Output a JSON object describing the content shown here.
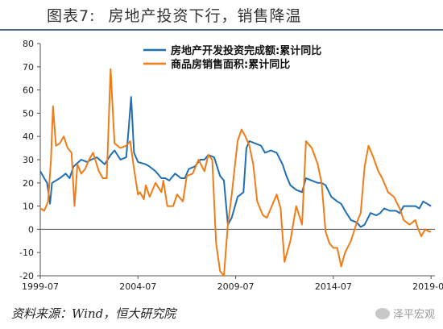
{
  "figure": {
    "label": "图表7:",
    "title": "房地产投资下行，销售降温",
    "source": "资料来源：Wind，恒大研究院",
    "watermark": "泽平宏观"
  },
  "chart_data": {
    "type": "line",
    "title": "",
    "xlabel": "",
    "ylabel": "",
    "ylim": [
      -20,
      80
    ],
    "yticks": [
      -20,
      -10,
      0,
      10,
      20,
      30,
      40,
      50,
      60,
      70,
      80
    ],
    "xlim": [
      1999.5,
      2019.7
    ],
    "xtick_labels": [
      "1999-07",
      "2004-07",
      "2009-07",
      "2014-07",
      "2019-07"
    ],
    "xtick_values": [
      1999.5,
      2004.5,
      2009.5,
      2014.5,
      2019.5
    ],
    "legend_position": "top-right",
    "grid": false,
    "series": [
      {
        "name": "房地产开发投资完成额:累计同比",
        "color": "#1f6fb2",
        "points": [
          [
            1999.5,
            25
          ],
          [
            1999.7,
            22
          ],
          [
            1999.85,
            20
          ],
          [
            2000.0,
            11
          ],
          [
            2000.1,
            20
          ],
          [
            2000.5,
            22
          ],
          [
            2000.8,
            24
          ],
          [
            2001.0,
            22
          ],
          [
            2001.2,
            27
          ],
          [
            2001.6,
            30
          ],
          [
            2001.9,
            29
          ],
          [
            2002.1,
            30
          ],
          [
            2002.4,
            31
          ],
          [
            2002.8,
            28
          ],
          [
            2003.1,
            32
          ],
          [
            2003.3,
            34
          ],
          [
            2003.6,
            30
          ],
          [
            2003.9,
            31
          ],
          [
            2004.0,
            41
          ],
          [
            2004.15,
            57
          ],
          [
            2004.3,
            33
          ],
          [
            2004.5,
            29
          ],
          [
            2004.9,
            28
          ],
          [
            2005.1,
            27
          ],
          [
            2005.4,
            25
          ],
          [
            2005.7,
            22
          ],
          [
            2005.9,
            22
          ],
          [
            2006.1,
            21
          ],
          [
            2006.4,
            24
          ],
          [
            2006.7,
            22
          ],
          [
            2006.9,
            22
          ],
          [
            2007.1,
            26
          ],
          [
            2007.4,
            27
          ],
          [
            2007.7,
            30
          ],
          [
            2007.9,
            30
          ],
          [
            2008.1,
            32
          ],
          [
            2008.4,
            31
          ],
          [
            2008.7,
            23
          ],
          [
            2008.9,
            21
          ],
          [
            2009.1,
            2
          ],
          [
            2009.3,
            5
          ],
          [
            2009.6,
            14
          ],
          [
            2009.9,
            16
          ],
          [
            2010.05,
            35
          ],
          [
            2010.2,
            38
          ],
          [
            2010.5,
            37
          ],
          [
            2010.8,
            36
          ],
          [
            2011.0,
            33
          ],
          [
            2011.3,
            34
          ],
          [
            2011.6,
            33
          ],
          [
            2011.9,
            28
          ],
          [
            2012.1,
            23
          ],
          [
            2012.3,
            19
          ],
          [
            2012.6,
            17
          ],
          [
            2012.9,
            16
          ],
          [
            2013.1,
            22
          ],
          [
            2013.4,
            21
          ],
          [
            2013.7,
            20
          ],
          [
            2013.9,
            20
          ],
          [
            2014.1,
            19
          ],
          [
            2014.4,
            14
          ],
          [
            2014.7,
            12
          ],
          [
            2014.9,
            11
          ],
          [
            2015.1,
            8
          ],
          [
            2015.4,
            4
          ],
          [
            2015.7,
            3
          ],
          [
            2015.9,
            1
          ],
          [
            2016.1,
            2
          ],
          [
            2016.4,
            7
          ],
          [
            2016.7,
            6
          ],
          [
            2016.9,
            7
          ],
          [
            2017.1,
            9
          ],
          [
            2017.4,
            8
          ],
          [
            2017.7,
            8
          ],
          [
            2017.9,
            7
          ],
          [
            2018.1,
            10
          ],
          [
            2018.4,
            10
          ],
          [
            2018.7,
            10
          ],
          [
            2018.9,
            9
          ],
          [
            2019.1,
            12
          ],
          [
            2019.3,
            11
          ],
          [
            2019.5,
            10
          ]
        ]
      },
      {
        "name": "商品房销售面积:累计同比",
        "color": "#f07c18",
        "points": [
          [
            1999.5,
            9
          ],
          [
            1999.7,
            8
          ],
          [
            1999.9,
            12
          ],
          [
            2000.05,
            30
          ],
          [
            2000.15,
            53
          ],
          [
            2000.3,
            36
          ],
          [
            2000.5,
            37
          ],
          [
            2000.7,
            40
          ],
          [
            2000.9,
            35
          ],
          [
            2001.1,
            33
          ],
          [
            2001.25,
            10
          ],
          [
            2001.4,
            28
          ],
          [
            2001.6,
            24
          ],
          [
            2001.8,
            26
          ],
          [
            2002.0,
            30
          ],
          [
            2002.2,
            33
          ],
          [
            2002.5,
            25
          ],
          [
            2002.7,
            22
          ],
          [
            2002.9,
            22
          ],
          [
            2003.1,
            69
          ],
          [
            2003.3,
            37
          ],
          [
            2003.6,
            35
          ],
          [
            2003.9,
            36
          ],
          [
            2004.1,
            38
          ],
          [
            2004.3,
            26
          ],
          [
            2004.5,
            15
          ],
          [
            2004.6,
            16
          ],
          [
            2004.8,
            13
          ],
          [
            2004.9,
            19
          ],
          [
            2005.1,
            14
          ],
          [
            2005.4,
            20
          ],
          [
            2005.7,
            16
          ],
          [
            2005.8,
            21
          ],
          [
            2006.0,
            10
          ],
          [
            2006.3,
            10
          ],
          [
            2006.5,
            15
          ],
          [
            2006.8,
            12
          ],
          [
            2007.0,
            23
          ],
          [
            2007.3,
            24
          ],
          [
            2007.6,
            30
          ],
          [
            2007.9,
            25
          ],
          [
            2008.1,
            32
          ],
          [
            2008.3,
            30
          ],
          [
            2008.5,
            -6
          ],
          [
            2008.7,
            -18
          ],
          [
            2008.9,
            -20
          ],
          [
            2009.1,
            2
          ],
          [
            2009.3,
            15
          ],
          [
            2009.6,
            38
          ],
          [
            2009.8,
            43
          ],
          [
            2010.0,
            40
          ],
          [
            2010.2,
            36
          ],
          [
            2010.4,
            28
          ],
          [
            2010.6,
            12
          ],
          [
            2010.9,
            6
          ],
          [
            2011.1,
            5
          ],
          [
            2011.3,
            9
          ],
          [
            2011.6,
            15
          ],
          [
            2011.8,
            9
          ],
          [
            2012.0,
            -14
          ],
          [
            2012.3,
            -5
          ],
          [
            2012.6,
            10
          ],
          [
            2012.9,
            2
          ],
          [
            2013.1,
            38
          ],
          [
            2013.4,
            35
          ],
          [
            2013.7,
            28
          ],
          [
            2013.9,
            20
          ],
          [
            2014.1,
            -1
          ],
          [
            2014.3,
            -6
          ],
          [
            2014.5,
            -8
          ],
          [
            2014.7,
            -8
          ],
          [
            2014.9,
            -16
          ],
          [
            2015.1,
            -10
          ],
          [
            2015.4,
            -5
          ],
          [
            2015.7,
            3
          ],
          [
            2015.9,
            7
          ],
          [
            2016.1,
            27
          ],
          [
            2016.3,
            36
          ],
          [
            2016.5,
            32
          ],
          [
            2016.8,
            25
          ],
          [
            2017.0,
            22
          ],
          [
            2017.3,
            16
          ],
          [
            2017.6,
            14
          ],
          [
            2017.9,
            9
          ],
          [
            2018.1,
            4
          ],
          [
            2018.4,
            2
          ],
          [
            2018.7,
            4
          ],
          [
            2018.8,
            1
          ],
          [
            2019.0,
            -3
          ],
          [
            2019.2,
            0
          ],
          [
            2019.4,
            -1
          ],
          [
            2019.5,
            -1
          ]
        ]
      }
    ]
  }
}
